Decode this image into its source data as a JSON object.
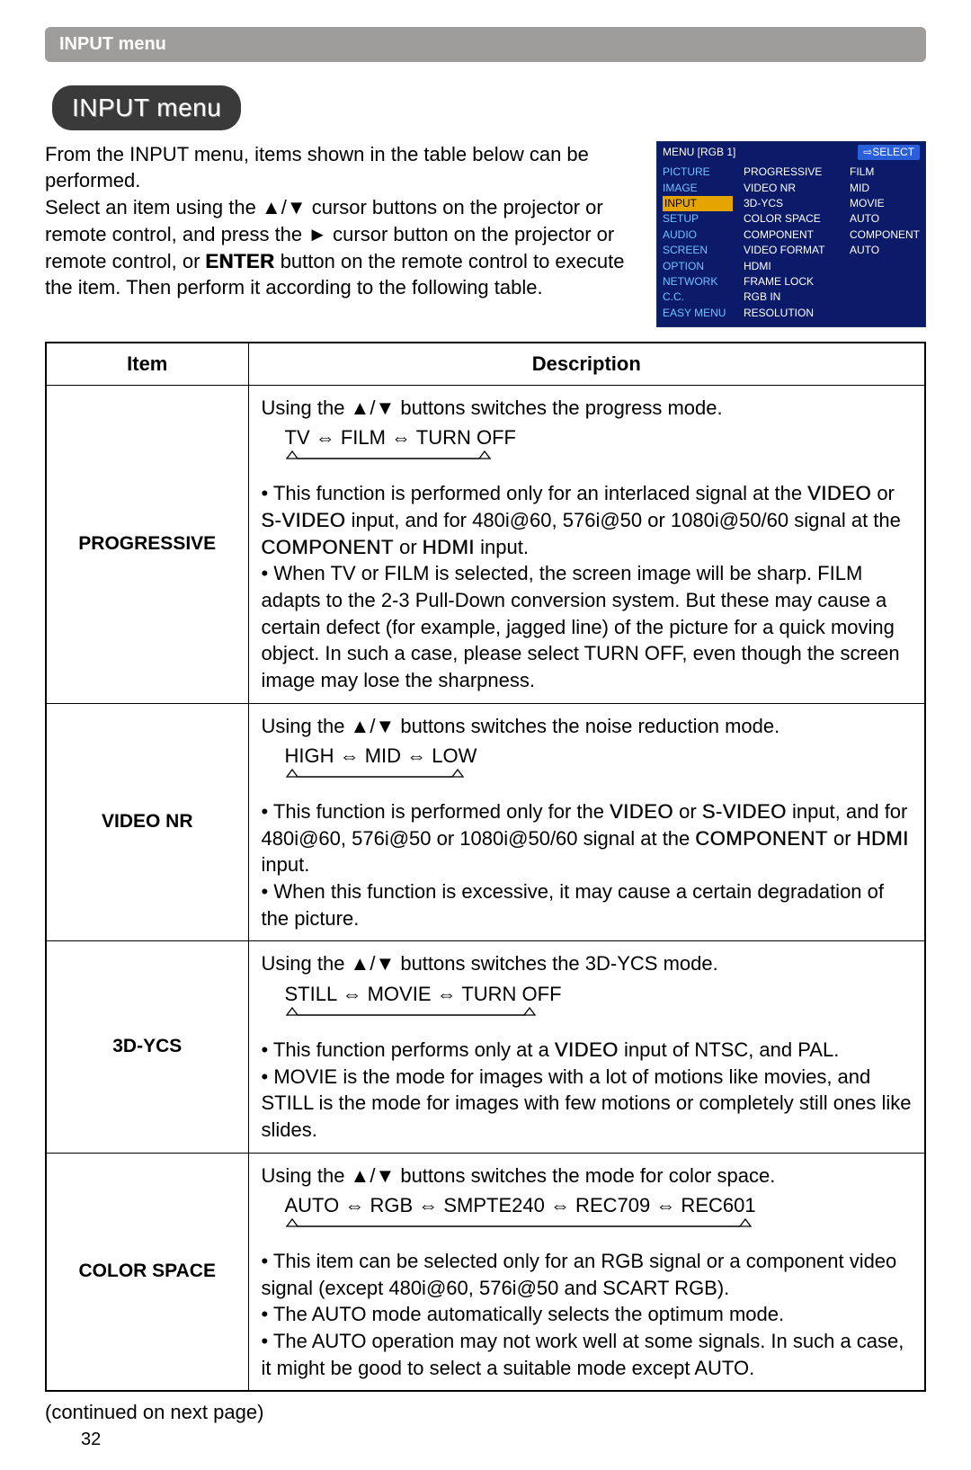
{
  "header": {
    "bar_text": "INPUT menu"
  },
  "title_badge": "INPUT menu",
  "intro": {
    "p1a": "From the INPUT menu, items shown in the table below can be performed.",
    "p2a": "Select an item using the ▲/▼ cursor buttons on the projector or remote control, and press the ► cursor button on the projector or remote control, or ",
    "p2_enter": "ENTER",
    "p2b": " button on the remote control to execute the item. Then perform it according to the following table."
  },
  "osd": {
    "title_left": "MENU [RGB 1]",
    "title_right": "⇨SELECT",
    "left": [
      "PICTURE",
      "IMAGE",
      "INPUT",
      "SETUP",
      "AUDIO",
      "SCREEN",
      "OPTION",
      "NETWORK",
      "C.C.",
      "EASY MENU"
    ],
    "mid": [
      "PROGRESSIVE",
      "VIDEO NR",
      "3D-YCS",
      "COLOR SPACE",
      "COMPONENT",
      "VIDEO FORMAT",
      "HDMI",
      "FRAME LOCK",
      "RGB IN",
      "RESOLUTION"
    ],
    "right": [
      "FILM",
      "MID",
      "MOVIE",
      "AUTO",
      "COMPONENT",
      "",
      "AUTO",
      "",
      "",
      ""
    ],
    "highlight_left_index": 2
  },
  "table": {
    "head_item": "Item",
    "head_desc": "Description",
    "rows": [
      {
        "label": "PROGRESSIVE",
        "line1": "Using the ▲/▼ buttons switches the progress mode.",
        "cycle": "TV ⇔ FILM ⇔ TURN OFF",
        "arrow_width": 230,
        "b1a": "• This function is performed only for an interlaced signal at the ",
        "k1": "VIDEO",
        "b1b": " or ",
        "k2": "S-VIDEO",
        "b1c": " input, and for 480i@60, 576i@50 or 1080i@50/60 signal at the ",
        "k3": "COMPONENT",
        "b1d": " or ",
        "k4": "HDMI",
        "b1e": " input.",
        "b2": "• When TV or FILM is selected, the screen image will be sharp. FILM adapts to the 2-3 Pull-Down conversion system. But these may cause a certain defect (for example, jagged line) of the picture for a quick moving object. In such a case, please select TURN OFF, even though the screen image may lose the sharpness."
      },
      {
        "label": "VIDEO NR",
        "line1": "Using the ▲/▼ buttons switches the noise reduction mode.",
        "cycle": "HIGH ⇔ MID ⇔ LOW",
        "arrow_width": 200,
        "b1a": "• This function is performed only for the ",
        "k1": "VIDEO",
        "b1b": " or ",
        "k2": "S-VIDEO",
        "b1c": " input, and for 480i@60, 576i@50 or 1080i@50/60 signal at the ",
        "k3": "COMPONENT",
        "b1d": " or ",
        "k4": "HDMI",
        "b1e": " input.",
        "b2": "• When this function is excessive, it may cause a certain degradation of the picture."
      },
      {
        "label": "3D-YCS",
        "line1": "Using the ▲/▼ buttons switches the 3D-YCS mode.",
        "cycle": "STILL ⇔ MOVIE ⇔ TURN OFF",
        "arrow_width": 280,
        "b1a": "• This function performs only at a ",
        "k1": "VIDEO",
        "b1b": " input of NTSC, and PAL.",
        "b2": "• MOVIE is the mode for images with a lot of motions like movies, and STILL is the mode for images with few motions or completely still ones like slides."
      },
      {
        "label": "COLOR SPACE",
        "line1": "Using the ▲/▼ buttons switches the mode for color space.",
        "cycle": "AUTO ⇔ RGB ⇔ SMPTE240 ⇔ REC709 ⇔ REC601",
        "arrow_width": 520,
        "b1": "• This item can be selected only for an RGB signal or a component video signal (except 480i@60, 576i@50 and SCART RGB).",
        "b2": "• The AUTO mode automatically selects the optimum mode.",
        "b3": "• The AUTO operation may not work well at some signals. In such a case, it might be good to select a suitable mode except AUTO."
      }
    ]
  },
  "footer": {
    "continued": "(continued on next page)",
    "page": "32"
  }
}
